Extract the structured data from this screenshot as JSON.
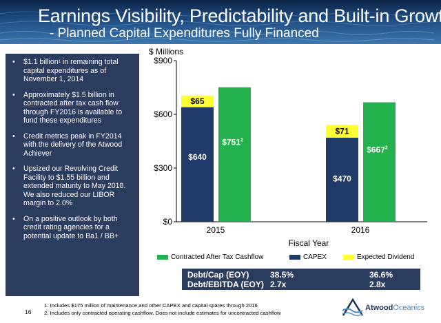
{
  "header": {
    "title": "Earnings Visibility, Predictability and Built-in Growth",
    "subtitle": "- Planned Capital Expenditures Fully Financed"
  },
  "sidebar": {
    "bullet_char": "•",
    "items": [
      {
        "text": "$1.1 billion",
        "sup": "1",
        "rest": " in remaining total capital expenditures as of November 1, 2014"
      },
      {
        "text": "Approximately $1.5 billion in contracted after tax cash flow through FY2016 is available to fund these expenditures",
        "sup": "",
        "rest": ""
      },
      {
        "text": "Credit metrics peak in FY2014 with the delivery of the Atwood Achiever",
        "sup": "",
        "rest": ""
      },
      {
        "text": "Upsized our Revolving Credit Facility to $1.55 billion and extended maturity to May 2018. We also reduced our LIBOR margin to 2.0%",
        "sup": "",
        "rest": ""
      },
      {
        "text": "On a positive outlook by both credit rating agencies for a potential update to Ba1 / BB+",
        "sup": "",
        "rest": ""
      }
    ]
  },
  "chart_data": {
    "type": "bar",
    "unit_label": "$ Millions",
    "xlabel": "Fiscal Year",
    "ylim": [
      0,
      900
    ],
    "yticks": [
      0,
      300,
      600,
      900
    ],
    "ytick_labels": [
      "$0",
      "$300",
      "$600",
      "$900"
    ],
    "categories": [
      "2015",
      "2016"
    ],
    "series": [
      {
        "name": "CAPEX",
        "values": [
          640,
          470
        ],
        "labels": [
          "$640",
          "$470"
        ],
        "color": "#1f3a68"
      },
      {
        "name": "Expected Dividend",
        "values": [
          65,
          71
        ],
        "labels": [
          "$65",
          "$71"
        ],
        "color": "#ffff33",
        "stacked_on": "CAPEX"
      },
      {
        "name": "Contracted After Tax Cashflow",
        "values": [
          751,
          667
        ],
        "labels": [
          "$751",
          "$667"
        ],
        "label_sup": "2",
        "color": "#22b14c"
      }
    ],
    "legend": [
      "Contracted After Tax Cashflow",
      "CAPEX",
      "Expected Dividend"
    ],
    "legend_position": "bottom"
  },
  "metrics": {
    "rows": [
      {
        "label": "Debt/Cap (EOY)",
        "v2015": "38.5%",
        "v2016": "36.6%"
      },
      {
        "label": "Debt/EBITDA (EOY)",
        "v2015": "2.7x",
        "v2016": "2.8x"
      }
    ]
  },
  "footnotes": [
    "1.   Includes $175 million of maintenance and other CAPEX and capital spares through 2016",
    "2.   Includes only contracted operating cashflow.  Does not include estimates for uncontracted cashflow"
  ],
  "page_number": "16",
  "logo": {
    "part1": "Atwood",
    "part2": "Oceanics"
  }
}
